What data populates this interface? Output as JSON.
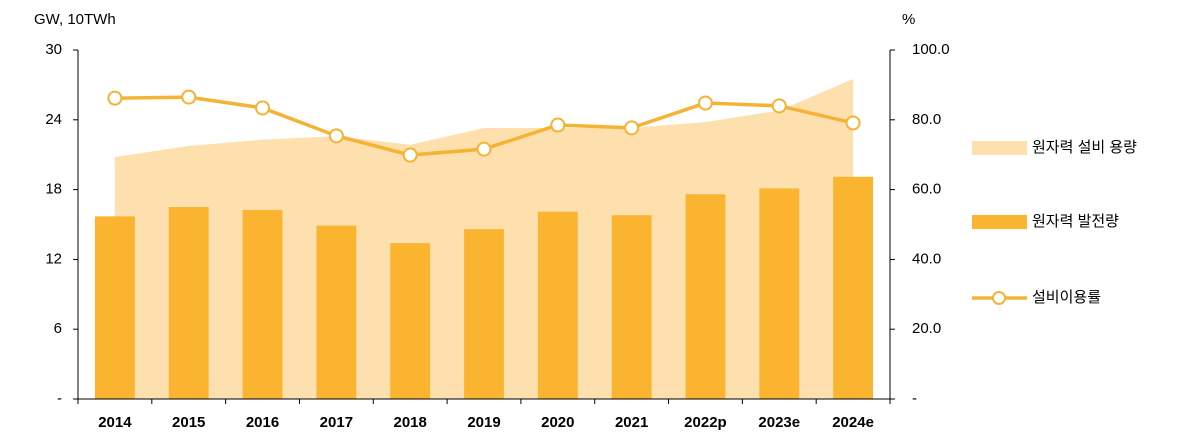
{
  "chart_data": {
    "type": "combo",
    "y_label": "GW, 10TWh",
    "y2_label": "%",
    "categories": [
      "2014",
      "2015",
      "2016",
      "2017",
      "2018",
      "2019",
      "2020",
      "2021",
      "2022p",
      "2023e",
      "2024e"
    ],
    "series": [
      {
        "name": "원자력 설비 용량",
        "type": "area",
        "color": "#fde0ad",
        "values": [
          20.8,
          21.75,
          22.3,
          22.6,
          21.85,
          23.3,
          23.3,
          23.3,
          23.8,
          24.8,
          27.5
        ]
      },
      {
        "name": "원자력 발전량",
        "type": "bar",
        "color": "#fbb430",
        "values": [
          15.7,
          16.5,
          16.25,
          14.9,
          13.4,
          14.6,
          16.1,
          15.8,
          17.6,
          18.1,
          19.1
        ]
      },
      {
        "name": "설비이용률",
        "type": "line",
        "axis": "y2",
        "color": "#f5b335",
        "values": [
          86.2,
          86.5,
          83.4,
          75.4,
          69.9,
          71.6,
          78.5,
          77.7,
          84.8,
          84.0,
          79.1
        ]
      }
    ],
    "ylim": [
      0,
      30
    ],
    "yticks": [
      {
        "value": 0,
        "label": "-"
      },
      6,
      12,
      18,
      24,
      30
    ],
    "y2lim": [
      0,
      100
    ],
    "y2ticks": [
      {
        "value": 0,
        "label": "-"
      },
      {
        "value": 20,
        "label": "20.0"
      },
      {
        "value": 40,
        "label": "40.0"
      },
      {
        "value": 60,
        "label": "60.0"
      },
      {
        "value": 80,
        "label": "80.0"
      },
      {
        "value": 100,
        "label": "100.0"
      }
    ],
    "legend": "right"
  }
}
